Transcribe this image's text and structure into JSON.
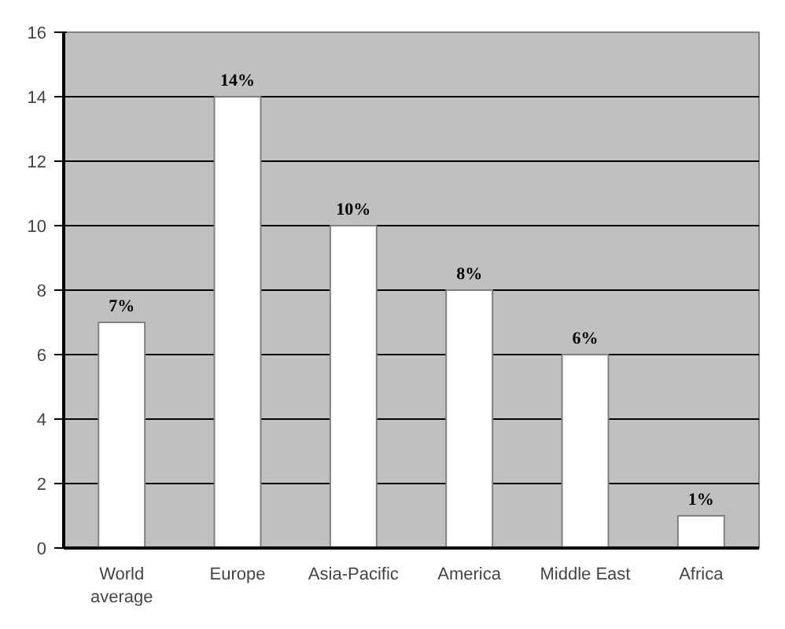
{
  "chart_data": {
    "type": "bar",
    "categories": [
      "World average",
      "Europe",
      "Asia-Pacific",
      "America",
      "Middle East",
      "Africa"
    ],
    "values": [
      7,
      14,
      10,
      8,
      6,
      1
    ],
    "value_labels": [
      "7%",
      "14%",
      "10%",
      "8%",
      "6%",
      "1%"
    ],
    "color": "#ffffff",
    "ylim": [
      0,
      16
    ],
    "yticks": [
      0,
      2,
      4,
      6,
      8,
      10,
      12,
      14,
      16
    ],
    "grid": "y"
  }
}
